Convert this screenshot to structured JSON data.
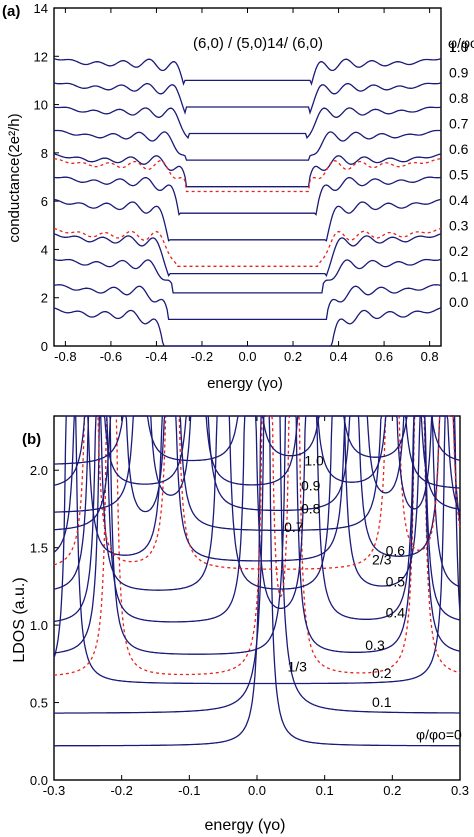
{
  "colors": {
    "solid": "#1a1a7a",
    "dashed": "#e8241c",
    "axis": "#000000"
  },
  "chart_data": [
    {
      "panel_label": "(a)",
      "type": "line",
      "title": "(6,0) / (5,0)14/ (6,0)",
      "xlabel": "energy (γo)",
      "ylabel": "conductance(2e²/h)",
      "xlim": [
        -0.85,
        0.85
      ],
      "ylim": [
        0,
        14
      ],
      "x_ticks": [
        "-0.8",
        "-0.6",
        "-0.4",
        "-0.2",
        "0.0",
        "0.2",
        "0.4",
        "0.6",
        "0.8"
      ],
      "y_ticks": [
        "0",
        "2",
        "4",
        "6",
        "8",
        "10",
        "12",
        "14"
      ],
      "legend_title": "φ/φo",
      "series": [
        {
          "name": "0.0",
          "offset": 0,
          "gap": 0.37,
          "edge": 1.3,
          "style": "solid"
        },
        {
          "name": "0.1",
          "offset": 1.1,
          "gap": 0.35,
          "edge": 1.2,
          "style": "solid"
        },
        {
          "name": "0.2",
          "offset": 2.2,
          "gap": 0.33,
          "edge": 1.2,
          "style": "solid"
        },
        {
          "name": "1/3",
          "offset": 3.3,
          "gap": 0.31,
          "edge": 1.3,
          "style": "dashed"
        },
        {
          "name": "0.3",
          "offset": 3.0,
          "gap": 0.34,
          "edge": 1.4,
          "style": "solid"
        },
        {
          "name": "0.4",
          "offset": 4.4,
          "gap": 0.34,
          "edge": 1.4,
          "style": "solid"
        },
        {
          "name": "0.5",
          "offset": 5.5,
          "gap": 0.3,
          "edge": 1.3,
          "style": "solid"
        },
        {
          "name": "0.6",
          "offset": 6.6,
          "gap": 0.27,
          "edge": 1.1,
          "style": "solid"
        },
        {
          "name": "2/3",
          "offset": 6.4,
          "gap": 0.27,
          "edge": 1.1,
          "style": "dashed"
        },
        {
          "name": "0.7",
          "offset": 7.7,
          "gap": 0.27,
          "edge": 1.0,
          "style": "solid"
        },
        {
          "name": "0.8",
          "offset": 8.8,
          "gap": 0.26,
          "edge": 0.9,
          "style": "solid"
        },
        {
          "name": "0.9",
          "offset": 9.9,
          "gap": 0.27,
          "edge": 0.8,
          "style": "solid"
        },
        {
          "name": "1.0",
          "offset": 11.0,
          "gap": 0.28,
          "edge": 0.7,
          "style": "solid"
        }
      ],
      "right_labels": [
        "1.0",
        "0.9",
        "0.8",
        "0.7",
        "0.6",
        "0.5",
        "0.4",
        "0.3",
        "0.2",
        "0.1",
        "0.0"
      ]
    },
    {
      "panel_label": "(b)",
      "type": "line",
      "xlabel": "energy (γo)",
      "ylabel": "LDOS (a.u.)",
      "xlim": [
        -0.3,
        0.3
      ],
      "ylim": [
        0,
        2.35
      ],
      "x_ticks": [
        "-0.3",
        "-0.2",
        "-0.1",
        "0.0",
        "0.1",
        "0.2",
        "0.3"
      ],
      "y_ticks": [
        "0.0",
        "0.5",
        "1.0",
        "1.5",
        "2.0"
      ],
      "series": [
        {
          "name": "φ/φo=0",
          "offset": 0.22,
          "peaks": [
            0.012
          ],
          "style": "solid"
        },
        {
          "name": "0.1",
          "offset": 0.43,
          "peaks": [
            0.018,
            0.026
          ],
          "style": "solid"
        },
        {
          "name": "0.2",
          "offset": 0.62,
          "peaks": [
            -0.275,
            0.285
          ],
          "style": "solid"
        },
        {
          "name": "1/3",
          "offset": 0.66,
          "peaks": [
            -0.215,
            0.015,
            0.055,
            0.24
          ],
          "style": "dashed"
        },
        {
          "name": "0.3",
          "offset": 0.8,
          "peaks": [
            -0.225,
            0.05,
            0.24
          ],
          "style": "solid"
        },
        {
          "name": "0.4",
          "offset": 1.0,
          "peaks": [
            -0.23,
            -0.01,
            0.08,
            0.24
          ],
          "style": "solid"
        },
        {
          "name": "0.5",
          "offset": 1.2,
          "peaks": [
            -0.24,
            -0.05,
            0.12,
            0.25
          ],
          "style": "solid"
        },
        {
          "name": "0.6",
          "offset": 1.4,
          "peaks": [
            -0.26,
            -0.13,
            0.14,
            0.28
          ],
          "style": "solid"
        },
        {
          "name": "2/3",
          "offset": 1.35,
          "peaks": [
            -0.245,
            -0.125,
            0.2,
            0.28
          ],
          "style": "dashed"
        },
        {
          "name": "0.7",
          "offset": 1.6,
          "peaks": [
            -0.205,
            -0.125,
            0.195,
            0.27
          ],
          "style": "solid"
        },
        {
          "name": "0.8",
          "offset": 1.72,
          "peaks": [
            -0.17,
            -0.085,
            0.15,
            0.23
          ],
          "style": "solid"
        },
        {
          "name": "0.9",
          "offset": 1.87,
          "peaks": [
            -0.24,
            -0.09,
            0.075,
            0.205
          ],
          "style": "solid"
        },
        {
          "name": "1.0",
          "offset": 2.03,
          "peaks": [
            -0.18,
            -0.01,
            0.11,
            0.24
          ],
          "style": "solid"
        }
      ]
    }
  ]
}
